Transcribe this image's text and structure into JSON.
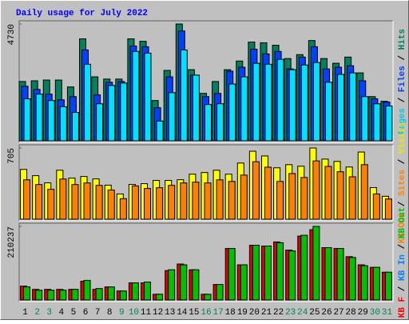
{
  "title": "Daily usage for July 2022",
  "categories": [
    "1",
    "2",
    "3",
    "4",
    "5",
    "6",
    "7",
    "8",
    "9",
    "10",
    "11",
    "12",
    "13",
    "14",
    "15",
    "16",
    "17",
    "18",
    "19",
    "20",
    "21",
    "22",
    "23",
    "24",
    "25",
    "26",
    "27",
    "28",
    "29",
    "30",
    "31"
  ],
  "category_colors": [
    "#000000",
    "#00805c",
    "#00805c",
    "#000000",
    "#000000",
    "#000000",
    "#000000",
    "#000000",
    "#00805c",
    "#00805c",
    "#000000",
    "#000000",
    "#000000",
    "#000000",
    "#000000",
    "#00805c",
    "#00805c",
    "#000000",
    "#000000",
    "#000000",
    "#000000",
    "#000000",
    "#00805c",
    "#00805c",
    "#000000",
    "#000000",
    "#000000",
    "#000000",
    "#000000",
    "#00805c",
    "#00805c"
  ],
  "legend_separator": " / ",
  "chart_data": [
    {
      "type": "bar",
      "ylim": [
        0,
        4730
      ],
      "yticks": [
        4730
      ],
      "legend": [
        {
          "text": "Pages",
          "color": "#00c8e8"
        },
        {
          "text": "Files",
          "color": "#0040ff"
        },
        {
          "text": "Hits",
          "color": "#00805c"
        }
      ],
      "series": [
        {
          "color": "#00805c",
          "values": [
            2400,
            2430,
            2460,
            2460,
            2180,
            4130,
            2590,
            2500,
            2500,
            4130,
            4030,
            1630,
            2850,
            4730,
            2880,
            1920,
            2400,
            2880,
            3230,
            4000,
            3970,
            3870,
            3330,
            3490,
            4060,
            3330,
            3140,
            3390,
            2750,
            1790,
            1600
          ]
        },
        {
          "color": "#0040ff",
          "values": [
            2210,
            2080,
            1890,
            1660,
            1790,
            3680,
            1860,
            2370,
            2400,
            3840,
            3810,
            1340,
            2590,
            4450,
            2660,
            1790,
            1920,
            2820,
            2980,
            3710,
            3520,
            3620,
            2910,
            3390,
            3810,
            2910,
            2980,
            3040,
            2430,
            1700,
            1570
          ]
        },
        {
          "color": "#00e0ff",
          "values": [
            1700,
            1890,
            1630,
            1380,
            1150,
            3100,
            1500,
            2240,
            2340,
            3620,
            3550,
            800,
            1950,
            3680,
            2660,
            1470,
            1500,
            2300,
            2590,
            3140,
            3100,
            3300,
            2880,
            3070,
            3170,
            2370,
            2690,
            2750,
            1790,
            1500,
            1410
          ]
        }
      ]
    },
    {
      "type": "bar",
      "ylim": [
        0,
        705
      ],
      "yticks": [
        705
      ],
      "legend": [
        {
          "text": "KB Out",
          "color": "#ff8000"
        },
        {
          "text": "Sites",
          "color": "#ff8000"
        },
        {
          "text": "Visits",
          "color": "#e8e800"
        }
      ],
      "series": [
        {
          "color": "#ffff00",
          "values": [
            493,
            431,
            360,
            485,
            407,
            423,
            399,
            337,
            250,
            344,
            352,
            384,
            384,
            391,
            446,
            462,
            485,
            446,
            556,
            673,
            626,
            509,
            540,
            525,
            705,
            595,
            572,
            517,
            665,
            313,
            227
          ]
        },
        {
          "color": "#ff8000",
          "values": [
            390,
            343,
            296,
            398,
            343,
            359,
            335,
            289,
            203,
            330,
            304,
            312,
            335,
            359,
            367,
            359,
            390,
            374,
            437,
            569,
            515,
            374,
            452,
            413,
            577,
            523,
            470,
            420,
            540,
            250,
            200
          ]
        }
      ]
    },
    {
      "type": "bar",
      "ylim": [
        0,
        210237
      ],
      "yticks": [
        210237
      ],
      "legend": [
        {
          "text": "KB F",
          "color": "#ff0000"
        },
        {
          "text": "KB In",
          "color": "#0080ff"
        },
        {
          "text": "KB Out",
          "color": "#00c000"
        }
      ],
      "series": [
        {
          "color": "#e00000",
          "values": [
            39700,
            30400,
            30400,
            30400,
            30400,
            53700,
            30400,
            37400,
            25700,
            49000,
            49000,
            16400,
            84100,
            102800,
            86400,
            16400,
            44400,
            147200,
            100500,
            156500,
            154200,
            165900,
            142500,
            182600,
            200900,
            149600,
            147200,
            123800,
            100500,
            93400,
            79400
          ]
        },
        {
          "color": "#00c000",
          "values": [
            37400,
            28000,
            28000,
            28000,
            30400,
            56100,
            32700,
            37400,
            25700,
            49000,
            51400,
            16400,
            86400,
            100500,
            86400,
            16400,
            44400,
            147200,
            100500,
            156500,
            154200,
            163500,
            140200,
            184900,
            210237,
            149600,
            147200,
            121500,
            98100,
            93400,
            79400
          ]
        }
      ]
    }
  ]
}
